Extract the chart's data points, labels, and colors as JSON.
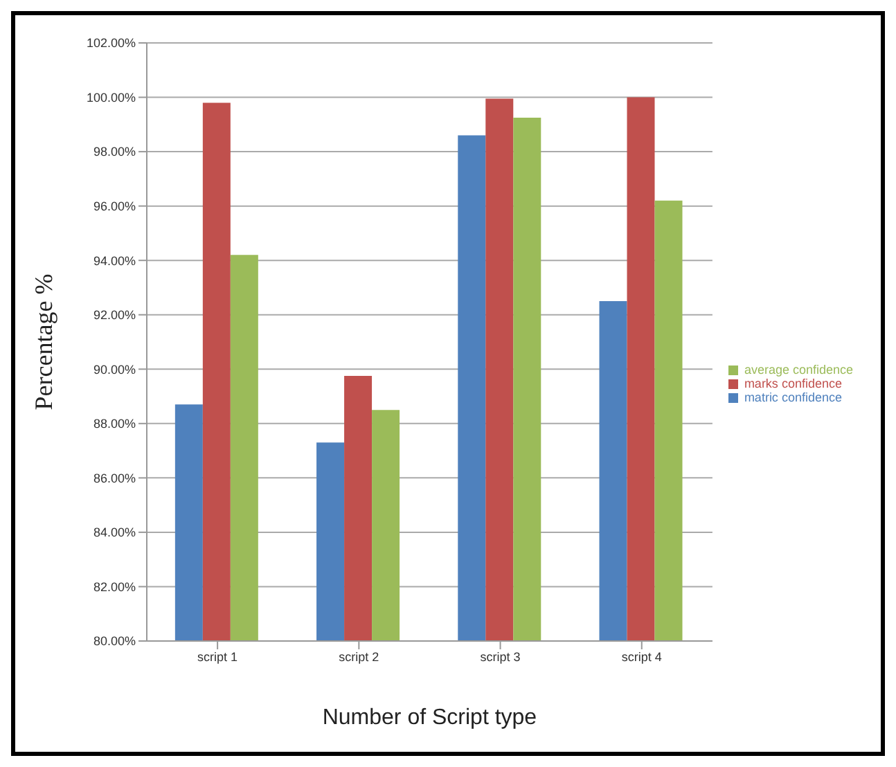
{
  "chart_data": {
    "type": "bar",
    "xlabel": "Number of Script type",
    "ylabel": "Percentage %",
    "categories": [
      "script 1",
      "script 2",
      "script 3",
      "script 4"
    ],
    "series": [
      {
        "name": "matric confidence",
        "color": "#4f81bd",
        "values": [
          88.7,
          87.3,
          98.6,
          92.5
        ]
      },
      {
        "name": "marks confidence",
        "color": "#c0504d",
        "values": [
          99.8,
          89.75,
          99.95,
          100.0
        ]
      },
      {
        "name": "average confidence",
        "color": "#9bbb59",
        "values": [
          94.2,
          88.5,
          99.25,
          96.2
        ]
      }
    ],
    "ylim": [
      80,
      102
    ],
    "yticks": [
      {
        "value": 80,
        "label": "80.00%"
      },
      {
        "value": 82,
        "label": "82.00%"
      },
      {
        "value": 84,
        "label": "84.00%"
      },
      {
        "value": 86,
        "label": "86.00%"
      },
      {
        "value": 88,
        "label": "88.00%"
      },
      {
        "value": 90,
        "label": "90.00%"
      },
      {
        "value": 92,
        "label": "92.00%"
      },
      {
        "value": 94,
        "label": "94.00%"
      },
      {
        "value": 96,
        "label": "96.00%"
      },
      {
        "value": 98,
        "label": "98.00%"
      },
      {
        "value": 100,
        "label": "100.00%"
      },
      {
        "value": 102,
        "label": "102.00%"
      }
    ],
    "grid": "y",
    "legend": "right"
  }
}
